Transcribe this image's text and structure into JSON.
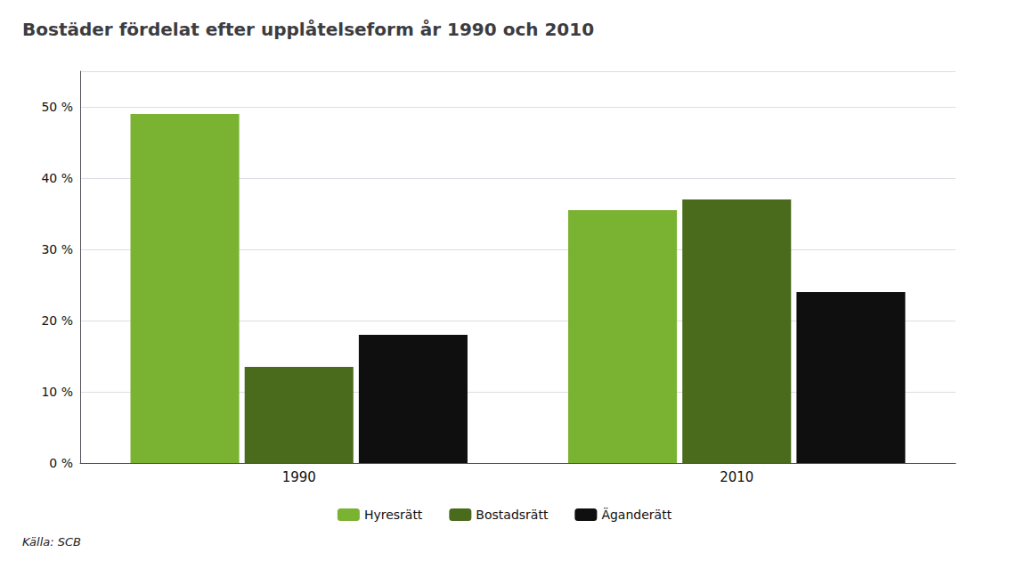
{
  "chart_data": {
    "type": "bar",
    "title": "Bostäder fördelat efter upplåtelseform år 1990 och 2010",
    "source": "Källa: SCB",
    "categories": [
      "1990",
      "2010"
    ],
    "series": [
      {
        "name": "Hyresrätt",
        "color": "#7ab232",
        "values": [
          49.0,
          35.5
        ]
      },
      {
        "name": "Bostadsrätt",
        "color": "#4a6b1c",
        "values": [
          13.5,
          37.0
        ]
      },
      {
        "name": "Äganderätt",
        "color": "#0f0f0f",
        "values": [
          18.0,
          24.0
        ]
      }
    ],
    "ylim": [
      0,
      55
    ],
    "yticks": [
      {
        "value": 0,
        "label": "0 %"
      },
      {
        "value": 10,
        "label": "10 %"
      },
      {
        "value": 20,
        "label": "20 %"
      },
      {
        "value": 30,
        "label": "30 %"
      },
      {
        "value": 40,
        "label": "40 %"
      },
      {
        "value": 50,
        "label": "50 %"
      }
    ],
    "grid": true,
    "legend": "bottom"
  }
}
